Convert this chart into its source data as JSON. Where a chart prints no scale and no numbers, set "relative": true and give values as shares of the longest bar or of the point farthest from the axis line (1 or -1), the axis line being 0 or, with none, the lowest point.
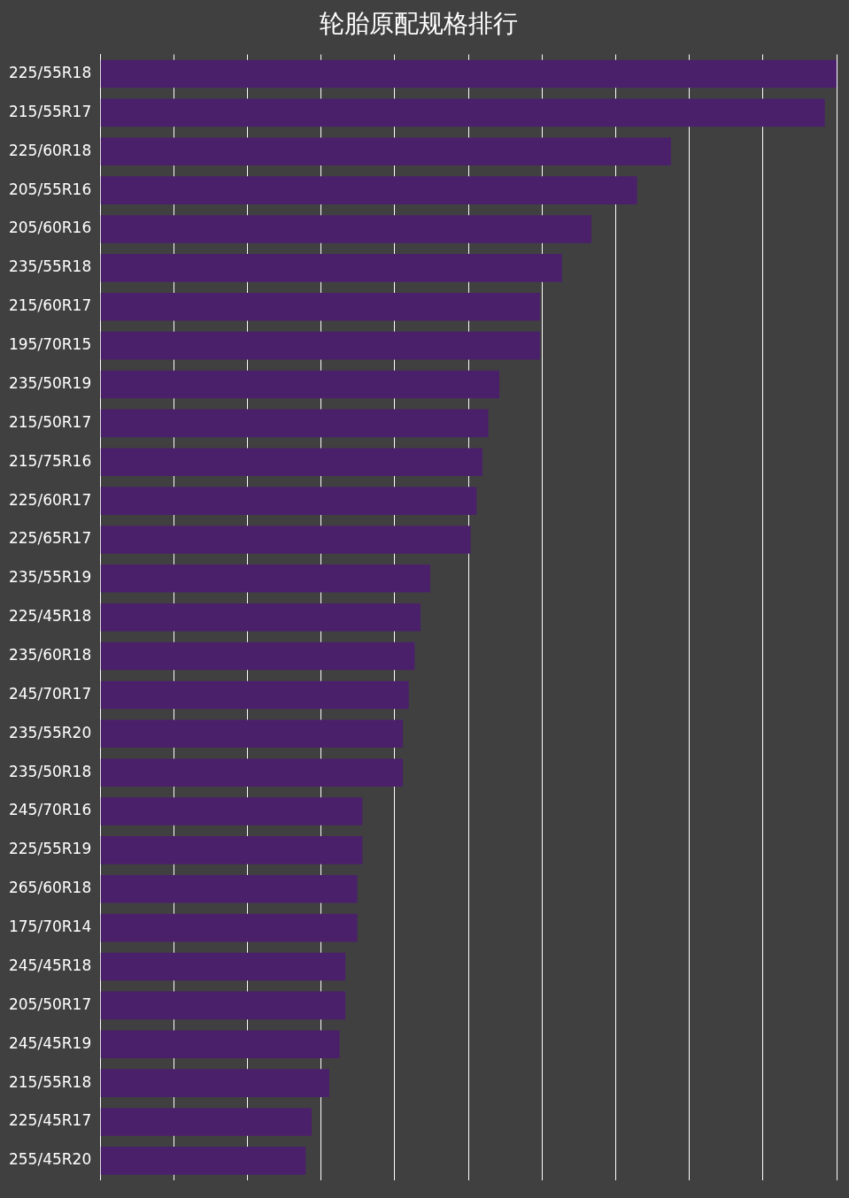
{
  "chart_data": {
    "type": "bar",
    "orientation": "horizontal",
    "relative": true,
    "title": "轮胎原配规格排行",
    "grid": "x",
    "color": "#4b206b",
    "categories": [
      "225/55R18",
      "215/55R17",
      "225/60R18",
      "205/55R16",
      "205/60R16",
      "235/55R18",
      "215/60R17",
      "195/70R15",
      "235/50R19",
      "215/50R17",
      "215/75R16",
      "225/60R17",
      "225/65R17",
      "235/55R19",
      "225/45R18",
      "235/60R18",
      "245/70R17",
      "235/55R20",
      "235/50R18",
      "245/70R16",
      "225/55R19",
      "265/60R18",
      "175/70R14",
      "245/45R18",
      "205/50R17",
      "245/45R19",
      "215/55R18",
      "225/45R17",
      "255/45R20"
    ],
    "values": [
      1,
      0.984,
      0.775,
      0.729,
      0.667,
      0.627,
      0.597,
      0.597,
      0.542,
      0.527,
      0.519,
      0.511,
      0.503,
      0.448,
      0.435,
      0.427,
      0.419,
      0.411,
      0.411,
      0.356,
      0.356,
      0.349,
      0.349,
      0.333,
      0.333,
      0.325,
      0.311,
      0.287,
      0.279
    ]
  }
}
